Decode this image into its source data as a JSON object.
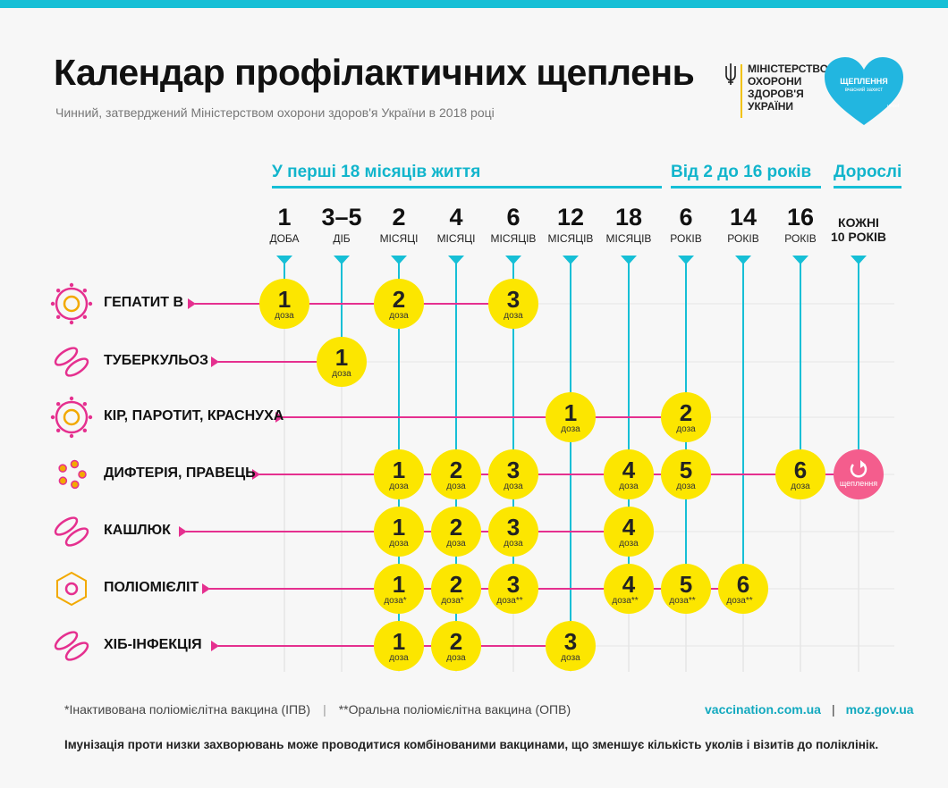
{
  "header": {
    "title": "Календар профілактичних щеплень",
    "subtitle": "Чинний, затверджений Міністерством охорони здоров'я України в 2018 році"
  },
  "ministry": {
    "lines": [
      "МІНІСТЕРСТВО",
      "ОХОРОНИ",
      "ЗДОРОВ'Я",
      "УКРАЇНИ"
    ]
  },
  "badge": {
    "title": "ЩЕПЛЕННЯ",
    "tagline": "вчасний захист"
  },
  "sections": [
    {
      "label": "У перші 18 місяців життя"
    },
    {
      "label": "Від 2 до 16 років"
    },
    {
      "label": "Дорослі"
    }
  ],
  "ages": [
    {
      "num": "1",
      "unit": "ДОБА"
    },
    {
      "num": "3–5",
      "unit": "ДІБ"
    },
    {
      "num": "2",
      "unit": "МІСЯЦІ"
    },
    {
      "num": "4",
      "unit": "МІСЯЦІ"
    },
    {
      "num": "6",
      "unit": "МІСЯЦІВ"
    },
    {
      "num": "12",
      "unit": "МІСЯЦІВ"
    },
    {
      "num": "18",
      "unit": "МІСЯЦІВ"
    },
    {
      "num": "6",
      "unit": "РОКІВ"
    },
    {
      "num": "14",
      "unit": "РОКІВ"
    },
    {
      "num": "16",
      "unit": "РОКІВ"
    },
    {
      "num": "КОЖНІ",
      "unit": "10 РОКІВ"
    }
  ],
  "dose_word": "доза",
  "rows": [
    {
      "name": "ГЕПАТИТ В",
      "icon": "hepatitis-b-icon",
      "doses": [
        {
          "col": 0,
          "n": "1"
        },
        {
          "col": 2,
          "n": "2"
        },
        {
          "col": 4,
          "n": "3"
        }
      ]
    },
    {
      "name": "ТУБЕРКУЛЬОЗ",
      "icon": "tuberculosis-icon",
      "doses": [
        {
          "col": 1,
          "n": "1"
        }
      ]
    },
    {
      "name": "КІР, ПАРОТИТ, КРАСНУХА",
      "icon": "measles-icon",
      "doses": [
        {
          "col": 5,
          "n": "1"
        },
        {
          "col": 7,
          "n": "2"
        }
      ]
    },
    {
      "name": "ДИФТЕРІЯ, ПРАВЕЦЬ",
      "icon": "diphtheria-icon",
      "doses": [
        {
          "col": 2,
          "n": "1"
        },
        {
          "col": 3,
          "n": "2"
        },
        {
          "col": 4,
          "n": "3"
        },
        {
          "col": 6,
          "n": "4"
        },
        {
          "col": 7,
          "n": "5"
        },
        {
          "col": 9,
          "n": "6"
        }
      ],
      "booster": {
        "col": 10,
        "label": "щеплення"
      }
    },
    {
      "name": "КАШЛЮК",
      "icon": "pertussis-icon",
      "doses": [
        {
          "col": 2,
          "n": "1"
        },
        {
          "col": 3,
          "n": "2"
        },
        {
          "col": 4,
          "n": "3"
        },
        {
          "col": 6,
          "n": "4"
        }
      ]
    },
    {
      "name": "ПОЛІОМІЄЛІТ",
      "icon": "polio-icon",
      "doses": [
        {
          "col": 2,
          "n": "1",
          "mark": "*"
        },
        {
          "col": 3,
          "n": "2",
          "mark": "*"
        },
        {
          "col": 4,
          "n": "3",
          "mark": "**"
        },
        {
          "col": 6,
          "n": "4",
          "mark": "**"
        },
        {
          "col": 7,
          "n": "5",
          "mark": "**"
        },
        {
          "col": 8,
          "n": "6",
          "mark": "**"
        }
      ]
    },
    {
      "name": "ХІБ-ІНФЕКЦІЯ",
      "icon": "hib-icon",
      "doses": [
        {
          "col": 2,
          "n": "1"
        },
        {
          "col": 3,
          "n": "2"
        },
        {
          "col": 5,
          "n": "3"
        }
      ]
    }
  ],
  "footer": {
    "note1": "*Інактивована поліомієлітна вакцина (ІПВ)",
    "note2": "**Оральна поліомієлітна вакцина (ОПВ)",
    "link1": "vaccination.com.ua",
    "link2": "moz.gov.ua",
    "bottom": "Імунізація проти низки захворювань може проводитися комбінованими вакцинами, що зменшує кількість уколів і візитів до поліклінік."
  },
  "colors": {
    "accent": "#16bfd6",
    "dose": "#fce600",
    "line": "#e5308f",
    "booster": "#f45d8d",
    "grid": "#dddddd"
  }
}
